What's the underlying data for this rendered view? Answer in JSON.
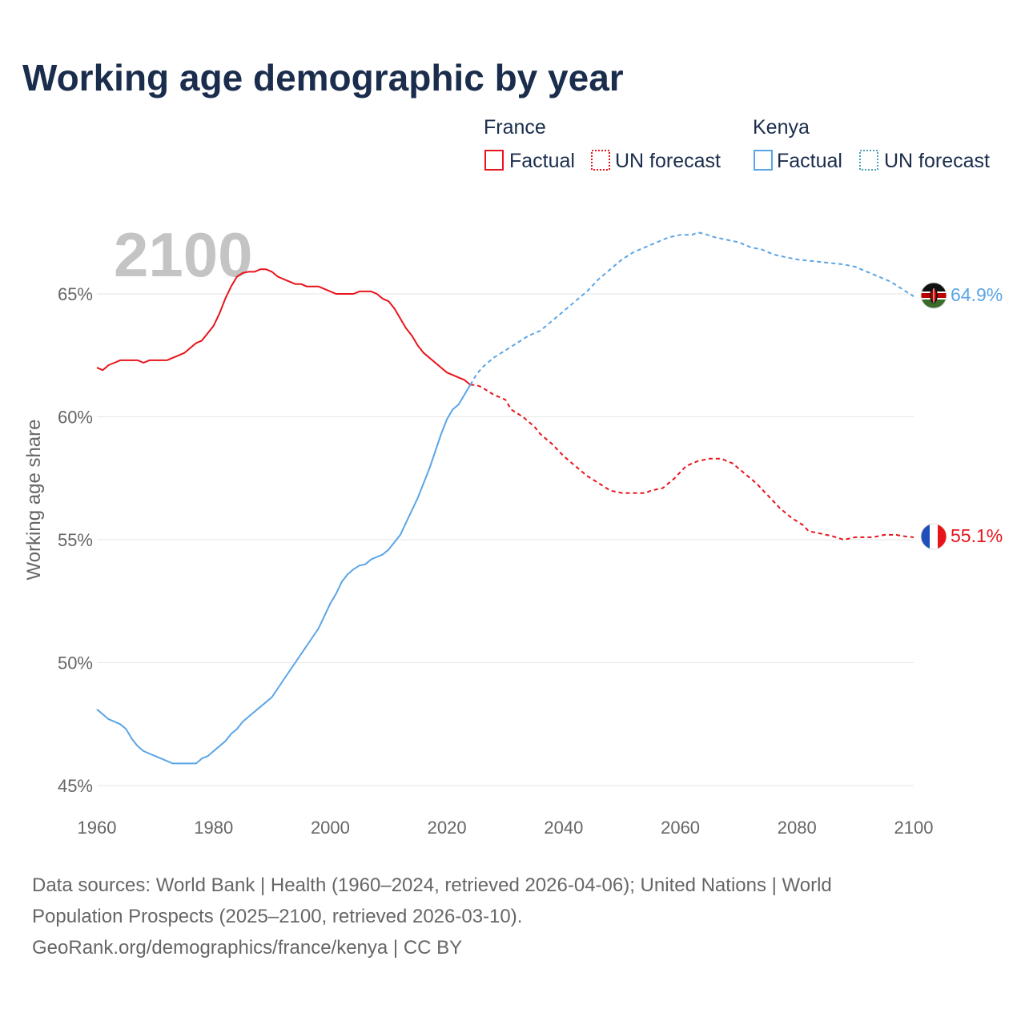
{
  "colors": {
    "france": "#e8141c",
    "kenya": "#5aa5e6",
    "kenya_forecast_legend": "#4aa0b8",
    "title": "#1b2d4d",
    "muted": "#666666",
    "watermark": "#c4c4c4"
  },
  "chart_data": {
    "type": "line",
    "title": "Working age demographic by year",
    "xlabel": "",
    "ylabel": "Working age share",
    "xlim": [
      1960,
      2100
    ],
    "ylim": [
      45,
      67.5
    ],
    "x_ticks": [
      1960,
      1980,
      2000,
      2020,
      2040,
      2060,
      2080,
      2100
    ],
    "y_ticks": [
      {
        "value": 45,
        "label": "45%"
      },
      {
        "value": 50,
        "label": "50%"
      },
      {
        "value": 55,
        "label": "55%"
      },
      {
        "value": 60,
        "label": "60%"
      },
      {
        "value": 65,
        "label": "65%"
      }
    ],
    "year_watermark": "2100",
    "factual_end_year": 2024,
    "legend": {
      "groups": [
        {
          "country": "France",
          "factual": "Factual",
          "forecast": "UN forecast"
        },
        {
          "country": "Kenya",
          "factual": "Factual",
          "forecast": "UN forecast"
        }
      ]
    },
    "series": [
      {
        "name": "France",
        "end_label": "55.1%",
        "flag": "france-flag",
        "points": [
          [
            1960,
            62.0
          ],
          [
            1961,
            61.9
          ],
          [
            1962,
            62.1
          ],
          [
            1963,
            62.2
          ],
          [
            1964,
            62.3
          ],
          [
            1965,
            62.3
          ],
          [
            1966,
            62.3
          ],
          [
            1967,
            62.3
          ],
          [
            1968,
            62.2
          ],
          [
            1969,
            62.3
          ],
          [
            1970,
            62.3
          ],
          [
            1972,
            62.3
          ],
          [
            1974,
            62.5
          ],
          [
            1975,
            62.6
          ],
          [
            1976,
            62.8
          ],
          [
            1977,
            63.0
          ],
          [
            1978,
            63.1
          ],
          [
            1979,
            63.4
          ],
          [
            1980,
            63.7
          ],
          [
            1981,
            64.2
          ],
          [
            1982,
            64.8
          ],
          [
            1983,
            65.3
          ],
          [
            1984,
            65.7
          ],
          [
            1985,
            65.85
          ],
          [
            1986,
            65.9
          ],
          [
            1987,
            65.9
          ],
          [
            1988,
            66.0
          ],
          [
            1989,
            66.0
          ],
          [
            1990,
            65.9
          ],
          [
            1991,
            65.7
          ],
          [
            1992,
            65.6
          ],
          [
            1994,
            65.4
          ],
          [
            1995,
            65.4
          ],
          [
            1996,
            65.3
          ],
          [
            1998,
            65.3
          ],
          [
            2000,
            65.1
          ],
          [
            2001,
            65.0
          ],
          [
            2004,
            65.0
          ],
          [
            2005,
            65.1
          ],
          [
            2007,
            65.1
          ],
          [
            2008,
            65.0
          ],
          [
            2009,
            64.8
          ],
          [
            2010,
            64.7
          ],
          [
            2011,
            64.4
          ],
          [
            2012,
            64.0
          ],
          [
            2013,
            63.6
          ],
          [
            2014,
            63.3
          ],
          [
            2015,
            62.9
          ],
          [
            2016,
            62.6
          ],
          [
            2017,
            62.4
          ],
          [
            2018,
            62.2
          ],
          [
            2019,
            62.0
          ],
          [
            2020,
            61.8
          ],
          [
            2022,
            61.6
          ],
          [
            2023,
            61.5
          ],
          [
            2024,
            61.3
          ],
          [
            2025,
            61.3
          ],
          [
            2026,
            61.2
          ],
          [
            2028,
            60.9
          ],
          [
            2030,
            60.7
          ],
          [
            2031,
            60.3
          ],
          [
            2033,
            60.0
          ],
          [
            2035,
            59.6
          ],
          [
            2036,
            59.3
          ],
          [
            2038,
            58.9
          ],
          [
            2040,
            58.4
          ],
          [
            2042,
            58.0
          ],
          [
            2044,
            57.6
          ],
          [
            2046,
            57.3
          ],
          [
            2048,
            57.0
          ],
          [
            2050,
            56.9
          ],
          [
            2054,
            56.9
          ],
          [
            2055,
            57.0
          ],
          [
            2057,
            57.1
          ],
          [
            2059,
            57.5
          ],
          [
            2061,
            58.0
          ],
          [
            2063,
            58.2
          ],
          [
            2065,
            58.3
          ],
          [
            2067,
            58.3
          ],
          [
            2069,
            58.1
          ],
          [
            2071,
            57.7
          ],
          [
            2073,
            57.3
          ],
          [
            2075,
            56.8
          ],
          [
            2077,
            56.3
          ],
          [
            2079,
            55.9
          ],
          [
            2081,
            55.6
          ],
          [
            2082,
            55.35
          ],
          [
            2084,
            55.25
          ],
          [
            2086,
            55.15
          ],
          [
            2088,
            55.0
          ],
          [
            2090,
            55.1
          ],
          [
            2093,
            55.1
          ],
          [
            2095,
            55.2
          ],
          [
            2097,
            55.2
          ],
          [
            2098,
            55.15
          ],
          [
            2100,
            55.1
          ]
        ]
      },
      {
        "name": "Kenya",
        "end_label": "64.9%",
        "flag": "kenya-flag",
        "points": [
          [
            1960,
            48.1
          ],
          [
            1962,
            47.7
          ],
          [
            1964,
            47.5
          ],
          [
            1965,
            47.3
          ],
          [
            1966,
            46.9
          ],
          [
            1967,
            46.6
          ],
          [
            1968,
            46.4
          ],
          [
            1970,
            46.2
          ],
          [
            1972,
            46.0
          ],
          [
            1973,
            45.9
          ],
          [
            1976,
            45.9
          ],
          [
            1977,
            45.9
          ],
          [
            1978,
            46.1
          ],
          [
            1979,
            46.2
          ],
          [
            1980,
            46.4
          ],
          [
            1982,
            46.8
          ],
          [
            1983,
            47.1
          ],
          [
            1984,
            47.3
          ],
          [
            1985,
            47.6
          ],
          [
            1986,
            47.8
          ],
          [
            1988,
            48.2
          ],
          [
            1990,
            48.6
          ],
          [
            1992,
            49.3
          ],
          [
            1994,
            50.0
          ],
          [
            1996,
            50.7
          ],
          [
            1998,
            51.4
          ],
          [
            2000,
            52.4
          ],
          [
            2001,
            52.8
          ],
          [
            2002,
            53.3
          ],
          [
            2003,
            53.6
          ],
          [
            2004,
            53.8
          ],
          [
            2005,
            53.95
          ],
          [
            2006,
            54.0
          ],
          [
            2007,
            54.2
          ],
          [
            2008,
            54.3
          ],
          [
            2009,
            54.4
          ],
          [
            2010,
            54.6
          ],
          [
            2011,
            54.9
          ],
          [
            2012,
            55.2
          ],
          [
            2013,
            55.7
          ],
          [
            2014,
            56.2
          ],
          [
            2015,
            56.7
          ],
          [
            2016,
            57.3
          ],
          [
            2017,
            57.9
          ],
          [
            2018,
            58.6
          ],
          [
            2019,
            59.3
          ],
          [
            2020,
            59.9
          ],
          [
            2021,
            60.3
          ],
          [
            2022,
            60.5
          ],
          [
            2023,
            60.9
          ],
          [
            2024,
            61.3
          ],
          [
            2025,
            61.7
          ],
          [
            2026,
            62.0
          ],
          [
            2027,
            62.2
          ],
          [
            2028,
            62.4
          ],
          [
            2030,
            62.7
          ],
          [
            2032,
            63.0
          ],
          [
            2034,
            63.3
          ],
          [
            2036,
            63.5
          ],
          [
            2038,
            63.9
          ],
          [
            2040,
            64.3
          ],
          [
            2042,
            64.7
          ],
          [
            2044,
            65.1
          ],
          [
            2046,
            65.6
          ],
          [
            2048,
            66.0
          ],
          [
            2050,
            66.4
          ],
          [
            2052,
            66.7
          ],
          [
            2054,
            66.9
          ],
          [
            2056,
            67.1
          ],
          [
            2058,
            67.3
          ],
          [
            2060,
            67.4
          ],
          [
            2062,
            67.4
          ],
          [
            2063,
            67.5
          ],
          [
            2064,
            67.45
          ],
          [
            2066,
            67.3
          ],
          [
            2068,
            67.2
          ],
          [
            2070,
            67.1
          ],
          [
            2072,
            66.9
          ],
          [
            2074,
            66.8
          ],
          [
            2076,
            66.6
          ],
          [
            2078,
            66.5
          ],
          [
            2080,
            66.4
          ],
          [
            2084,
            66.3
          ],
          [
            2088,
            66.2
          ],
          [
            2090,
            66.1
          ],
          [
            2092,
            65.9
          ],
          [
            2094,
            65.7
          ],
          [
            2096,
            65.5
          ],
          [
            2098,
            65.2
          ],
          [
            2100,
            64.9
          ]
        ]
      }
    ]
  },
  "source_lines": [
    "Data sources: World Bank | Health (1960–2024, retrieved 2026-04-06); United Nations | World",
    "Population Prospects (2025–2100, retrieved 2026-03-10).",
    "GeoRank.org/demographics/france/kenya | CC BY"
  ]
}
